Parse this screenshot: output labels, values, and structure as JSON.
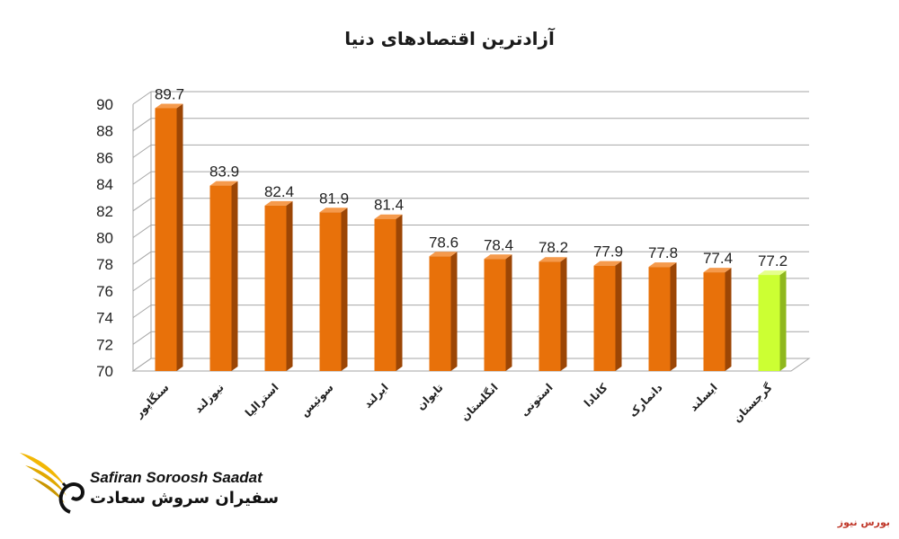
{
  "chart_data": {
    "type": "bar",
    "title": "آزادترین اقتصادهای دنیا",
    "categories": [
      "سنگاپور",
      "نیوزلند",
      "استرالیا",
      "سوئیس",
      "ایرلند",
      "تایوان",
      "انگلستان",
      "استونی",
      "کانادا",
      "دانمارک",
      "ایسلند",
      "گرجستان"
    ],
    "values": [
      89.7,
      83.9,
      82.4,
      81.9,
      81.4,
      78.6,
      78.4,
      78.2,
      77.9,
      77.8,
      77.4,
      77.2
    ],
    "ylim": [
      70,
      90
    ],
    "yticks": [
      70,
      72,
      74,
      76,
      78,
      80,
      82,
      84,
      86,
      88,
      90
    ],
    "grid": true,
    "legend": "none",
    "colors": {
      "bar": "#E8710A",
      "bar_side": "#9C4605",
      "bar_top": "#F59A4C",
      "highlight_bar": "#CCFF33",
      "highlight_side": "#8FB81E",
      "highlight_top": "#E5FF8C",
      "grid": "#A6A6A6"
    },
    "highlight_index": 11
  },
  "logo": {
    "name_en": "Safiran Soroosh Saadat",
    "name_fa": "سفیران سروش سعادت"
  },
  "source": "بورس نیوز"
}
